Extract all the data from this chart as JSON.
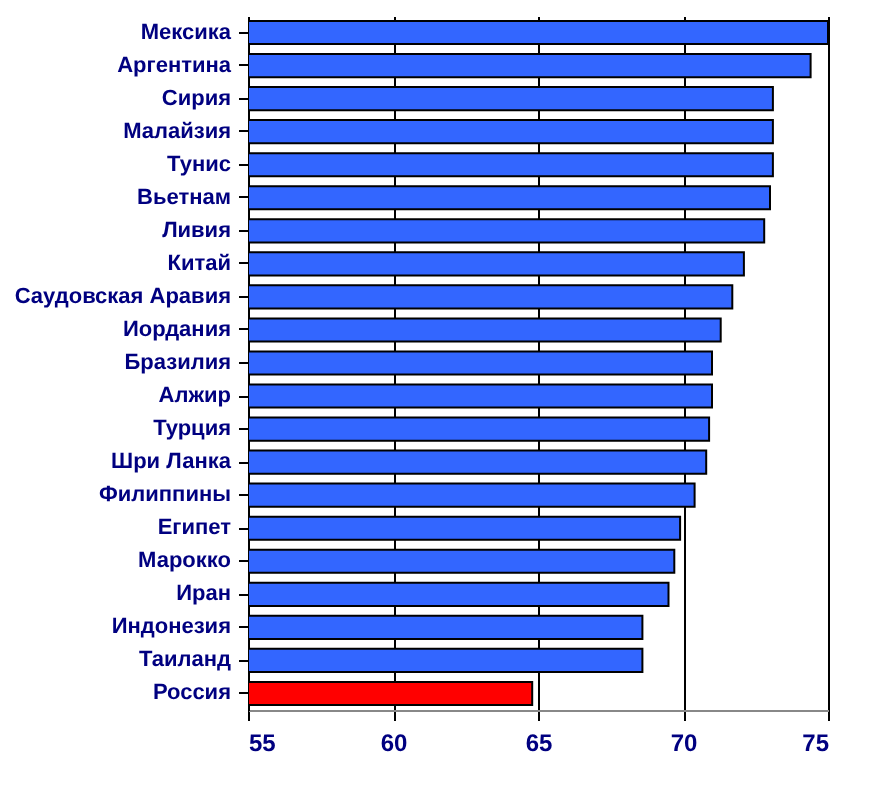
{
  "chart_data": {
    "type": "bar",
    "orientation": "horizontal",
    "categories": [
      "Мексика",
      "Аргентина",
      "Сирия",
      "Малайзия",
      "Тунис",
      "Вьетнам",
      "Ливия",
      "Китай",
      "Саудовская Аравия",
      "Иордания",
      "Бразилия",
      "Алжир",
      "Турция",
      "Шри Ланка",
      "Филиппины",
      "Египет",
      "Марокко",
      "Иран",
      "Индонезия",
      "Таиланд",
      "Россия"
    ],
    "values": [
      75.0,
      74.4,
      73.1,
      73.1,
      73.1,
      73.0,
      72.8,
      72.1,
      71.7,
      71.3,
      71.0,
      71.0,
      70.9,
      70.8,
      70.4,
      69.9,
      69.7,
      69.5,
      68.6,
      68.6,
      64.8
    ],
    "colors": [
      "#3366ff",
      "#3366ff",
      "#3366ff",
      "#3366ff",
      "#3366ff",
      "#3366ff",
      "#3366ff",
      "#3366ff",
      "#3366ff",
      "#3366ff",
      "#3366ff",
      "#3366ff",
      "#3366ff",
      "#3366ff",
      "#3366ff",
      "#3366ff",
      "#3366ff",
      "#3366ff",
      "#3366ff",
      "#3366ff",
      "#ff0000"
    ],
    "xlim": [
      55,
      75
    ],
    "xticks": [
      55,
      60,
      65,
      70,
      75
    ],
    "grid": "x"
  }
}
